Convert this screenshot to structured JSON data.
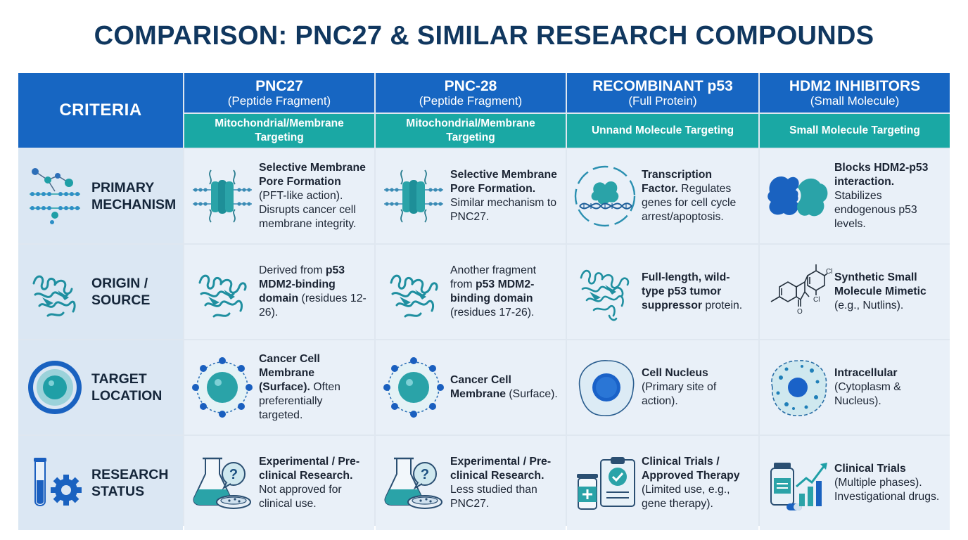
{
  "title": "COMPARISON: PNC27 & SIMILAR RESEARCH COMPOUNDS",
  "criteria_header": "CRITERIA",
  "columns": [
    {
      "name": "PNC27",
      "sub": "(Peptide Fragment)",
      "target": "Mitochondrial/Membrane Targeting"
    },
    {
      "name": "PNC-28",
      "sub": "(Peptide Fragment)",
      "target": "Mitochondrial/Membrane Targeting"
    },
    {
      "name": "RECOMBINANT p53",
      "sub": "(Full Protein)",
      "target": "Unnand Molecule Targeting"
    },
    {
      "name": "HDM2 INHIBITORS",
      "sub": "(Small Molecule)",
      "target": "Small Molecule Targeting"
    }
  ],
  "rows": [
    {
      "label1": "PRIMARY",
      "label2": "MECHANISM",
      "icon": "membrane-network-icon",
      "cells": [
        {
          "bold": "Selective Membrane Pore Formation",
          "rest": " (PFT-like action). Disrupts cancer cell membrane integrity.",
          "icon": "membrane-pore-icon"
        },
        {
          "bold": "Selective Membrane Pore Formation.",
          "rest": " Similar mechanism to PNC27.",
          "icon": "membrane-pore-icon"
        },
        {
          "bold": "Transcription Factor.",
          "rest": " Regulates genes for cell cycle arrest/apoptosis.",
          "icon": "dna-protein-icon"
        },
        {
          "bold": "Blocks HDM2-p53 interaction.",
          "rest": " Stabilizes endogenous p53 levels.",
          "icon": "protein-binding-icon"
        }
      ]
    },
    {
      "label1": "ORIGIN /",
      "label2": "SOURCE",
      "icon": "protein-fold-icon",
      "cells": [
        {
          "pre": "Derived from ",
          "bold": "p53 MDM2-binding domain",
          "rest": " (residues 12-26).",
          "icon": "protein-fold-icon"
        },
        {
          "pre": "Another fragment from ",
          "bold": "p53 MDM2-binding domain",
          "rest": " (residues 17-26).",
          "icon": "protein-fold-icon"
        },
        {
          "bold": "Full-length, wild-type p53 tumor suppressor",
          "rest": " protein.",
          "icon": "protein-fold-icon"
        },
        {
          "bold": "Synthetic Small Molecule Mimetic",
          "rest": " (e.g., Nutlins).",
          "icon": "molecule-structure-icon",
          "atom_cl1": "Cl",
          "atom_cl2": "Cl",
          "atom_o": "O"
        }
      ]
    },
    {
      "label1": "TARGET",
      "label2": "LOCATION",
      "icon": "cell-target-icon",
      "cells": [
        {
          "bold": "Cancer Cell Membrane (Surface).",
          "rest": " Often preferentially targeted.",
          "icon": "cell-membrane-icon"
        },
        {
          "bold": "Cancer Cell Membrane",
          "rest": " (Surface).",
          "icon": "cell-membrane-icon"
        },
        {
          "bold": "Cell Nucleus",
          "rest": " (Primary site of action).",
          "icon": "cell-nucleus-icon"
        },
        {
          "bold": "Intracellular",
          "rest": " (Cytoplasm & Nucleus).",
          "icon": "intracellular-icon"
        }
      ]
    },
    {
      "label1": "RESEARCH",
      "label2": "STATUS",
      "icon": "test-tube-gear-icon",
      "cells": [
        {
          "bold": "Experimental / Pre-clinical Research.",
          "rest": " Not approved for clinical use.",
          "icon": "flask-question-icon",
          "glyph": "?"
        },
        {
          "bold": "Experimental / Pre-clinical Research.",
          "rest": " Less studied than PNC27.",
          "icon": "flask-question-icon",
          "glyph": "?"
        },
        {
          "bold": "Clinical Trials / Approved Therapy",
          "rest": " (Limited use, e.g., gene therapy).",
          "icon": "clipboard-vial-icon"
        },
        {
          "bold": "Clinical Trials",
          "rest": " (Multiple phases). Investigational drugs.",
          "icon": "bottle-chart-icon"
        }
      ]
    }
  ],
  "colors": {
    "header_blue": "#1766c2",
    "header_teal": "#1aa8a4",
    "icon_teal": "#1f9fa6",
    "icon_blue": "#1a66c4"
  }
}
